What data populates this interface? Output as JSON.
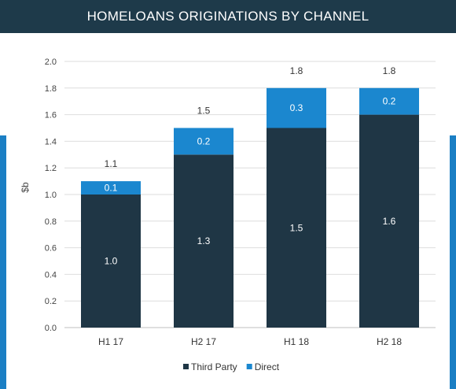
{
  "header": {
    "title": "HOMELOANS ORIGINATIONS BY CHANNEL"
  },
  "colors": {
    "third_party": "#1f3645",
    "direct": "#1b87cf",
    "header_bg": "#1e3a4a",
    "band": "#1b7fc4"
  },
  "chart_data": {
    "type": "bar",
    "stacked": true,
    "title": "HOMELOANS ORIGINATIONS BY CHANNEL",
    "xlabel": "",
    "ylabel": "$b",
    "ylim": [
      0,
      2.0
    ],
    "yticks": [
      "0.0",
      "0.2",
      "0.4",
      "0.6",
      "0.8",
      "1.0",
      "1.2",
      "1.4",
      "1.6",
      "1.8",
      "2.0"
    ],
    "grid": true,
    "legend_position": "bottom",
    "categories": [
      "H1 17",
      "H2 17",
      "H1 18",
      "H2 18"
    ],
    "series": [
      {
        "name": "Third Party",
        "values": [
          1.0,
          1.3,
          1.5,
          1.6
        ],
        "labels": [
          "1.0",
          "1.3",
          "1.5",
          "1.6"
        ]
      },
      {
        "name": "Direct",
        "values": [
          0.1,
          0.2,
          0.3,
          0.2
        ],
        "labels": [
          "0.1",
          "0.2",
          "0.3",
          "0.2"
        ]
      }
    ],
    "totals": [
      1.1,
      1.5,
      1.8,
      1.8
    ],
    "total_labels": [
      "1.1",
      "1.5",
      "1.8",
      "1.8"
    ]
  }
}
